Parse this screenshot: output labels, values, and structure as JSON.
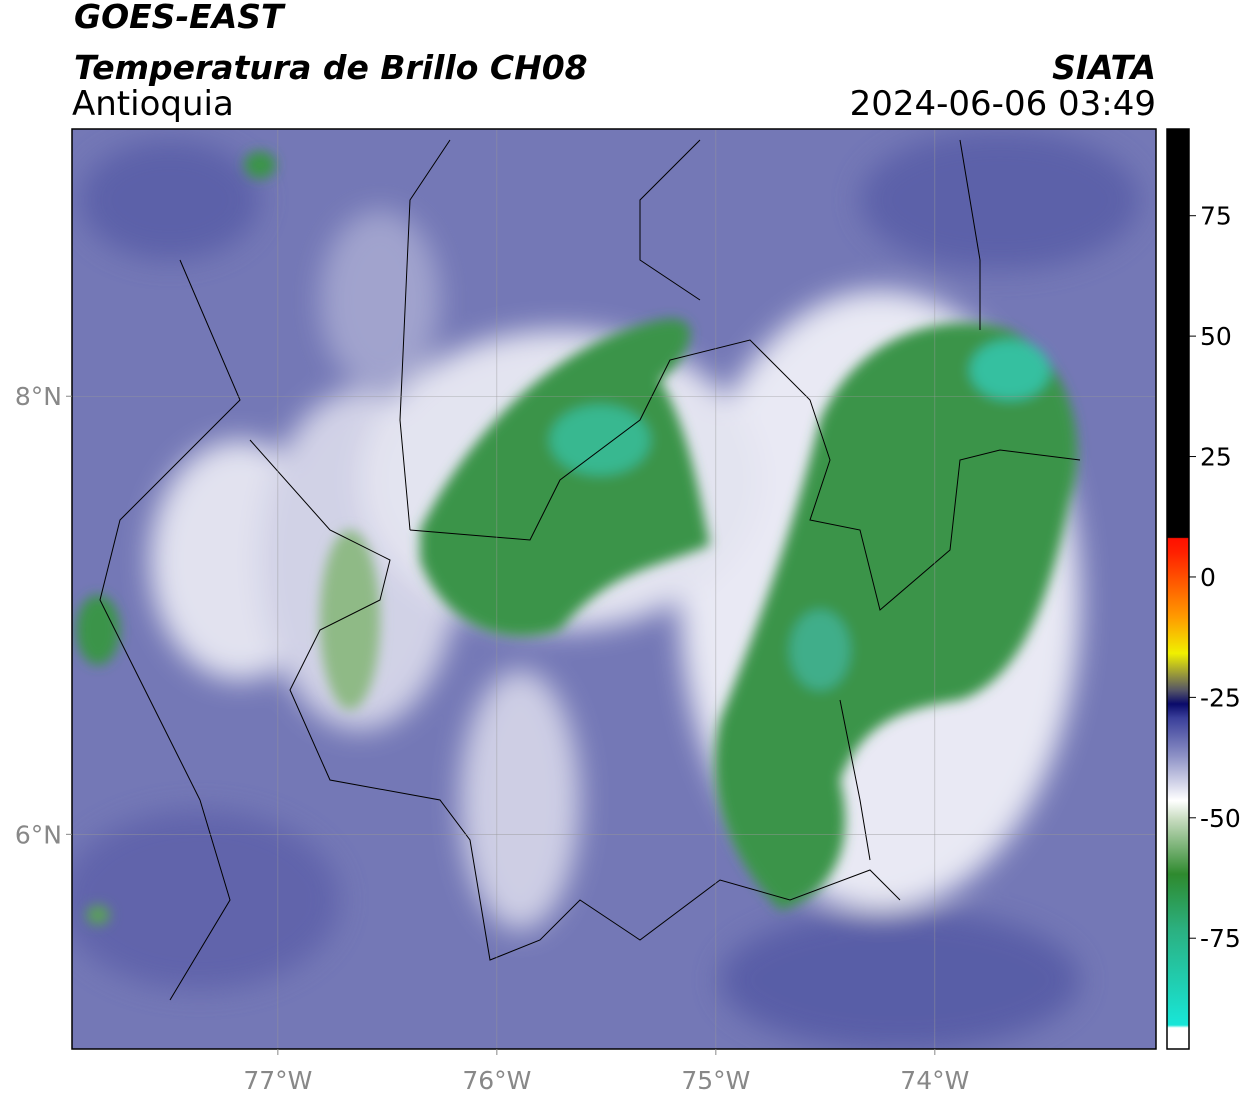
{
  "header": {
    "title": "GOES-EAST",
    "subtitle": "Temperatura de Brillo CH08",
    "region": "Antioquia",
    "source": "SIATA",
    "timestamp": "2024-06-06 03:49"
  },
  "map": {
    "xlim": [
      -77.94,
      -72.99
    ],
    "ylim": [
      5.02,
      9.22
    ],
    "xticks": [
      {
        "value": -77,
        "label": "77°W"
      },
      {
        "value": -76,
        "label": "76°W"
      },
      {
        "value": -75,
        "label": "75°W"
      },
      {
        "value": -74,
        "label": "74°W"
      }
    ],
    "yticks": [
      {
        "value": 8,
        "label": "8°N"
      },
      {
        "value": 6,
        "label": "6°N"
      }
    ],
    "grid": true
  },
  "colorbar": {
    "clim": [
      -98,
      93
    ],
    "ticks": [
      75,
      50,
      25,
      0,
      -25,
      -50,
      -75
    ]
  }
}
